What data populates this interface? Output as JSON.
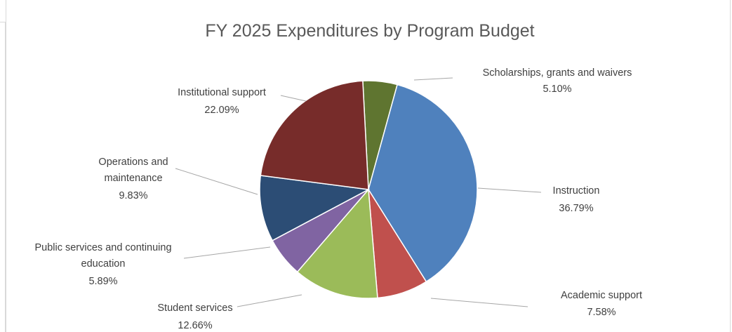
{
  "chart_data": {
    "type": "pie",
    "title": "FY 2025 Expenditures  by Program Budget",
    "slices": [
      {
        "label": [
          "Scholarships, grants and waivers"
        ],
        "value": 5.1,
        "display": "5.10%",
        "color": "#5f7530"
      },
      {
        "label": [
          "Instruction"
        ],
        "value": 36.79,
        "display": "36.79%",
        "color": "#4f81bd"
      },
      {
        "label": [
          "Academic support"
        ],
        "value": 7.58,
        "display": "7.58%",
        "color": "#c0504d"
      },
      {
        "label": [
          "Student services"
        ],
        "value": 12.66,
        "display": "12.66%",
        "color": "#9bbb59"
      },
      {
        "label": [
          "Public services and continuing",
          "education"
        ],
        "value": 5.89,
        "display": "5.89%",
        "color": "#8064a2"
      },
      {
        "label": [
          "Operations and",
          "maintenance"
        ],
        "value": 9.83,
        "display": "9.83%",
        "color": "#2c4d75"
      },
      {
        "label": [
          "Institutional support"
        ],
        "value": 22.09,
        "display": "22.09%",
        "color": "#772c2a"
      }
    ],
    "start_angle_deg": -3,
    "legend": "none",
    "data_labels": "outside-with-leader-lines"
  }
}
